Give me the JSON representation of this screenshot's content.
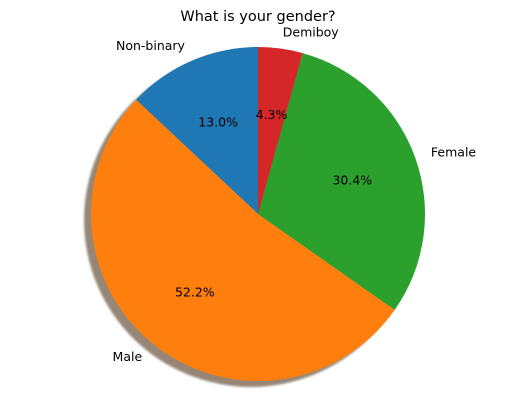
{
  "chart_data": {
    "type": "pie",
    "title": "What is your gender?",
    "start_angle_deg": 90,
    "direction": "counterclockwise",
    "shadow": true,
    "slices": [
      {
        "label": "Non-binary",
        "value": 13.0,
        "pct_label": "13.0%",
        "color": "#1f77b4"
      },
      {
        "label": "Male",
        "value": 52.2,
        "pct_label": "52.2%",
        "color": "#ff7f0e"
      },
      {
        "label": "Female",
        "value": 30.4,
        "pct_label": "30.4%",
        "color": "#2ca02c"
      },
      {
        "label": "Demiboy",
        "value": 4.3,
        "pct_label": "4.3%",
        "color": "#d62728"
      }
    ]
  }
}
